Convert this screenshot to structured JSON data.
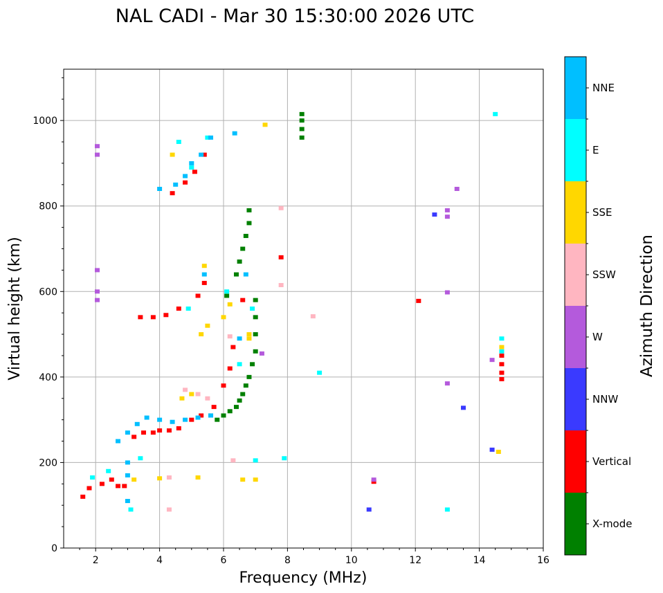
{
  "chart_data": {
    "type": "scatter",
    "title": "NAL CADI - Mar 30 15:30:00 2026 UTC",
    "xlabel": "Frequency (MHz)",
    "ylabel": "Virtual height (km)",
    "xlim": [
      1,
      16
    ],
    "ylim": [
      0,
      1120
    ],
    "xticks": [
      2,
      4,
      6,
      8,
      10,
      12,
      14,
      16
    ],
    "yticks": [
      0,
      200,
      400,
      600,
      800,
      1000
    ],
    "grid": true,
    "colorbar": {
      "label": "Azimuth Direction",
      "categories": [
        {
          "name": "X-mode",
          "color": "#008000"
        },
        {
          "name": "Vertical",
          "color": "#ff0000"
        },
        {
          "name": "NNW",
          "color": "#3a3aff"
        },
        {
          "name": "W",
          "color": "#b45adc"
        },
        {
          "name": "SSW",
          "color": "#ffb6c1"
        },
        {
          "name": "SSE",
          "color": "#ffd700"
        },
        {
          "name": "E",
          "color": "#00ffff"
        },
        {
          "name": "NNE",
          "color": "#00bfff"
        }
      ]
    },
    "series": [
      {
        "name": "X-mode",
        "points": [
          [
            5.8,
            300
          ],
          [
            6.0,
            310
          ],
          [
            6.2,
            320
          ],
          [
            6.4,
            330
          ],
          [
            6.5,
            345
          ],
          [
            6.6,
            360
          ],
          [
            6.7,
            380
          ],
          [
            6.8,
            400
          ],
          [
            6.9,
            430
          ],
          [
            7.0,
            460
          ],
          [
            7.0,
            500
          ],
          [
            7.0,
            540
          ],
          [
            7.0,
            580
          ],
          [
            6.4,
            640
          ],
          [
            6.5,
            670
          ],
          [
            6.6,
            700
          ],
          [
            6.7,
            730
          ],
          [
            6.8,
            760
          ],
          [
            6.8,
            790
          ],
          [
            8.45,
            960
          ],
          [
            8.45,
            980
          ],
          [
            8.45,
            1000
          ],
          [
            8.45,
            1015
          ],
          [
            6.1,
            590
          ],
          [
            5.6,
            310
          ]
        ]
      },
      {
        "name": "Vertical",
        "points": [
          [
            1.6,
            120
          ],
          [
            1.8,
            140
          ],
          [
            2.2,
            150
          ],
          [
            2.5,
            160
          ],
          [
            2.7,
            145
          ],
          [
            2.9,
            145
          ],
          [
            3.2,
            260
          ],
          [
            3.5,
            270
          ],
          [
            3.8,
            270
          ],
          [
            4.0,
            275
          ],
          [
            4.3,
            275
          ],
          [
            4.6,
            280
          ],
          [
            5.0,
            300
          ],
          [
            5.3,
            310
          ],
          [
            5.7,
            330
          ],
          [
            6.0,
            380
          ],
          [
            6.2,
            420
          ],
          [
            6.3,
            470
          ],
          [
            6.6,
            580
          ],
          [
            3.4,
            540
          ],
          [
            3.8,
            540
          ],
          [
            4.2,
            545
          ],
          [
            4.6,
            560
          ],
          [
            5.2,
            590
          ],
          [
            5.4,
            620
          ],
          [
            4.4,
            830
          ],
          [
            4.8,
            855
          ],
          [
            5.1,
            880
          ],
          [
            5.4,
            920
          ],
          [
            7.8,
            680
          ],
          [
            12.1,
            578
          ],
          [
            10.7,
            155
          ],
          [
            14.7,
            395
          ],
          [
            14.7,
            410
          ],
          [
            14.7,
            430
          ],
          [
            14.7,
            450
          ]
        ]
      },
      {
        "name": "NNW",
        "points": [
          [
            12.6,
            780
          ],
          [
            13.5,
            328
          ],
          [
            14.4,
            230
          ],
          [
            10.55,
            90
          ]
        ]
      },
      {
        "name": "W",
        "points": [
          [
            2.05,
            940
          ],
          [
            2.05,
            920
          ],
          [
            2.05,
            600
          ],
          [
            2.05,
            580
          ],
          [
            2.05,
            650
          ],
          [
            13.0,
            790
          ],
          [
            13.0,
            775
          ],
          [
            13.0,
            385
          ],
          [
            13.3,
            840
          ],
          [
            10.7,
            160
          ],
          [
            13.0,
            598
          ],
          [
            7.2,
            455
          ],
          [
            14.4,
            440
          ]
        ]
      },
      {
        "name": "SSW",
        "points": [
          [
            4.8,
            370
          ],
          [
            5.2,
            360
          ],
          [
            5.5,
            350
          ],
          [
            6.3,
            205
          ],
          [
            4.3,
            165
          ],
          [
            8.8,
            542
          ],
          [
            7.8,
            795
          ],
          [
            7.8,
            615
          ],
          [
            4.3,
            90
          ],
          [
            6.2,
            495
          ]
        ]
      },
      {
        "name": "SSE",
        "points": [
          [
            4.7,
            350
          ],
          [
            5.0,
            360
          ],
          [
            5.3,
            500
          ],
          [
            5.5,
            520
          ],
          [
            6.0,
            540
          ],
          [
            6.2,
            570
          ],
          [
            6.6,
            160
          ],
          [
            7.0,
            160
          ],
          [
            3.2,
            160
          ],
          [
            4.0,
            163
          ],
          [
            5.2,
            165
          ],
          [
            6.8,
            490
          ],
          [
            14.6,
            225
          ],
          [
            14.7,
            470
          ],
          [
            4.4,
            920
          ],
          [
            5.4,
            660
          ],
          [
            6.8,
            500
          ],
          [
            7.3,
            990
          ]
        ]
      },
      {
        "name": "E",
        "points": [
          [
            1.9,
            165
          ],
          [
            2.4,
            180
          ],
          [
            3.4,
            210
          ],
          [
            3.1,
            90
          ],
          [
            7.0,
            205
          ],
          [
            7.9,
            210
          ],
          [
            9.0,
            410
          ],
          [
            13.0,
            90
          ],
          [
            14.7,
            490
          ],
          [
            14.7,
            460
          ],
          [
            14.5,
            1015
          ],
          [
            4.6,
            950
          ],
          [
            5.0,
            890
          ],
          [
            5.5,
            960
          ],
          [
            4.9,
            560
          ],
          [
            6.1,
            600
          ],
          [
            6.5,
            430
          ],
          [
            6.9,
            560
          ]
        ]
      },
      {
        "name": "NNE",
        "points": [
          [
            3.0,
            170
          ],
          [
            3.0,
            200
          ],
          [
            2.7,
            250
          ],
          [
            3.0,
            270
          ],
          [
            3.3,
            290
          ],
          [
            3.6,
            305
          ],
          [
            4.0,
            300
          ],
          [
            4.4,
            295
          ],
          [
            4.8,
            300
          ],
          [
            5.2,
            305
          ],
          [
            5.6,
            310
          ],
          [
            4.0,
            840
          ],
          [
            4.5,
            850
          ],
          [
            4.8,
            870
          ],
          [
            5.0,
            900
          ],
          [
            5.3,
            920
          ],
          [
            5.6,
            960
          ],
          [
            6.35,
            970
          ],
          [
            5.4,
            640
          ],
          [
            6.5,
            490
          ],
          [
            6.7,
            640
          ],
          [
            3.0,
            110
          ]
        ]
      }
    ]
  }
}
